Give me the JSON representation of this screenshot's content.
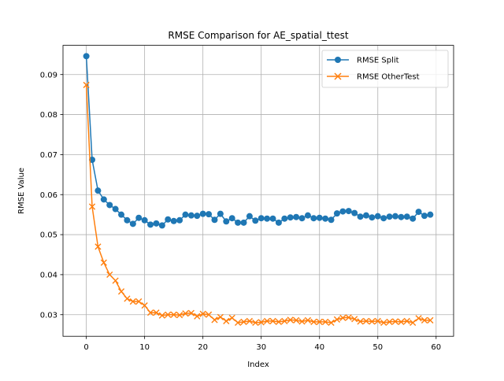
{
  "chart_data": {
    "type": "line",
    "title": "RMSE Comparison for AE_spatial_ttest",
    "xlabel": "Index",
    "ylabel": "RMSE Value",
    "xlim": [
      -4,
      63
    ],
    "ylim": [
      0.0246,
      0.0973
    ],
    "xticks": [
      0,
      10,
      20,
      30,
      40,
      50,
      60
    ],
    "yticks": [
      0.03,
      0.04,
      0.05,
      0.06,
      0.07,
      0.08,
      0.09
    ],
    "xtick_labels": [
      "0",
      "10",
      "20",
      "30",
      "40",
      "50",
      "60"
    ],
    "ytick_labels": [
      "0.03",
      "0.04",
      "0.05",
      "0.06",
      "0.07",
      "0.08",
      "0.09"
    ],
    "grid": true,
    "legend_position": "top-right",
    "x": [
      0,
      1,
      2,
      3,
      4,
      5,
      6,
      7,
      8,
      9,
      10,
      11,
      12,
      13,
      14,
      15,
      16,
      17,
      18,
      19,
      20,
      21,
      22,
      23,
      24,
      25,
      26,
      27,
      28,
      29,
      30,
      31,
      32,
      33,
      34,
      35,
      36,
      37,
      38,
      39,
      40,
      41,
      42,
      43,
      44,
      45,
      46,
      47,
      48,
      49,
      50,
      51,
      52,
      53,
      54,
      55,
      56,
      57,
      58,
      59
    ],
    "series": [
      {
        "name": "RMSE Split",
        "color": "#1f77b4",
        "marker": "circle",
        "values": [
          0.0946,
          0.0687,
          0.061,
          0.0588,
          0.0574,
          0.0564,
          0.055,
          0.0536,
          0.0527,
          0.0542,
          0.0536,
          0.0525,
          0.0528,
          0.0523,
          0.0538,
          0.0534,
          0.0536,
          0.055,
          0.0548,
          0.0547,
          0.0552,
          0.0551,
          0.0537,
          0.0552,
          0.0533,
          0.0541,
          0.053,
          0.053,
          0.0546,
          0.0535,
          0.0541,
          0.054,
          0.054,
          0.053,
          0.054,
          0.0543,
          0.0544,
          0.0541,
          0.0548,
          0.0541,
          0.0542,
          0.054,
          0.0537,
          0.0553,
          0.0558,
          0.0559,
          0.0554,
          0.0545,
          0.0548,
          0.0543,
          0.0546,
          0.0541,
          0.0545,
          0.0546,
          0.0544,
          0.0545,
          0.054,
          0.0557,
          0.0547,
          0.055
        ]
      },
      {
        "name": "RMSE OtherTest",
        "color": "#ff7f0e",
        "marker": "x",
        "values": [
          0.0874,
          0.057,
          0.047,
          0.043,
          0.04,
          0.0385,
          0.0358,
          0.034,
          0.0333,
          0.0333,
          0.0323,
          0.0305,
          0.0305,
          0.0298,
          0.03,
          0.03,
          0.0299,
          0.0303,
          0.0304,
          0.0296,
          0.0302,
          0.03,
          0.0287,
          0.0294,
          0.0284,
          0.0292,
          0.028,
          0.0282,
          0.0284,
          0.028,
          0.0281,
          0.0284,
          0.0284,
          0.0282,
          0.0284,
          0.0287,
          0.0286,
          0.0283,
          0.0286,
          0.0282,
          0.0282,
          0.0282,
          0.028,
          0.0288,
          0.0292,
          0.0293,
          0.0289,
          0.0283,
          0.0284,
          0.0283,
          0.0284,
          0.028,
          0.0282,
          0.0283,
          0.0282,
          0.0284,
          0.028,
          0.0291,
          0.0286,
          0.0286
        ]
      }
    ]
  }
}
